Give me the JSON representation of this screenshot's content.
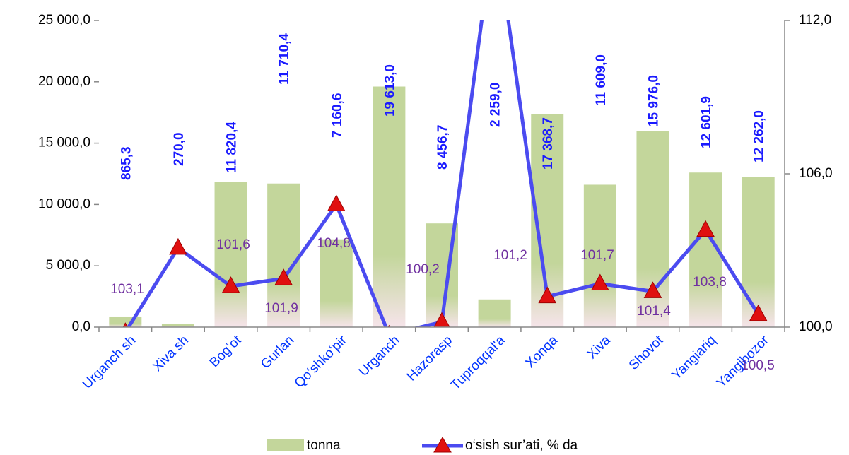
{
  "chart_data": {
    "type": "bar_line",
    "categories": [
      "Urganch sh",
      "Xiva sh",
      "Bog‘ot",
      "Gurlan",
      "Qo‘shko‘pir",
      "Urganch",
      "Hazorasp",
      "Tuproqqal'a",
      "Xonqa",
      "Xiva",
      "Shovot",
      "Yangiariq",
      "Yangibozor"
    ],
    "series": [
      {
        "name": "tonna",
        "type": "bar",
        "color": "#c3d69b",
        "values": [
          865.3,
          270.0,
          11820.4,
          11710.4,
          7160.6,
          19613.0,
          8456.7,
          2259.0,
          17368.7,
          11609.0,
          15976.0,
          12601.9,
          12262.0
        ],
        "value_labels": [
          "865,3",
          "270,0",
          "11 820,4",
          "11 710,4",
          "7 160,6",
          "19 613,0",
          "8 456,7",
          "2 259,0",
          "17 368,7",
          "11 609,0",
          "15 976,0",
          "12 601,9",
          "12 262,0"
        ]
      },
      {
        "name": "o‘sish sur’ati, % da",
        "type": "line",
        "axis": "y2",
        "color": "#4b4bf0",
        "marker_color": "#e01010",
        "values": [
          99.8,
          103.1,
          101.6,
          101.9,
          104.8,
          99.7,
          100.2,
          115.8,
          101.2,
          101.7,
          101.4,
          103.8,
          100.5
        ],
        "value_labels": [
          null,
          "103,1",
          "101,6",
          "101,9",
          "104,8",
          null,
          "100,2",
          null,
          "101,2",
          "101,7",
          "101,4",
          "103,8",
          "100,5"
        ]
      }
    ],
    "ylim": [
      0,
      25000
    ],
    "yticks": [
      {
        "value": 0,
        "label": "0,0"
      },
      {
        "value": 5000,
        "label": "5 000,0"
      },
      {
        "value": 10000,
        "label": "10 000,0"
      },
      {
        "value": 15000,
        "label": "15 000,0"
      },
      {
        "value": 20000,
        "label": "20 000,0"
      },
      {
        "value": 25000,
        "label": "25 000,0"
      }
    ],
    "y2lim": [
      100,
      112
    ],
    "y2ticks": [
      {
        "value": 100,
        "label": "100,0"
      },
      {
        "value": 106,
        "label": "106,0"
      },
      {
        "value": 112,
        "label": "112,0"
      }
    ],
    "legend": "bottom"
  }
}
